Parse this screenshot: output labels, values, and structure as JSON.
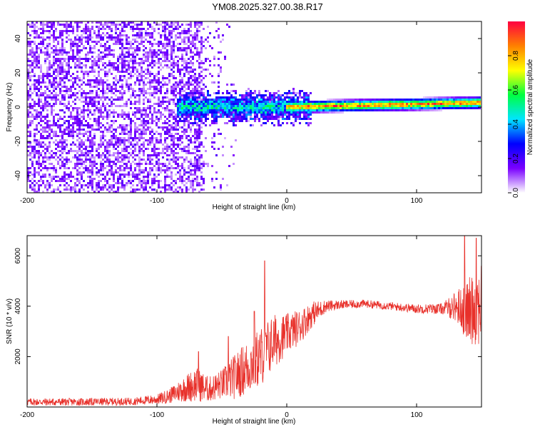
{
  "title": "YM08.2025.327.00.38.R17",
  "chart_data": [
    {
      "type": "heatmap",
      "xlabel": "Height of straight line (km)",
      "ylabel": "Frequency (Hz)",
      "xlim": [
        -200,
        150
      ],
      "ylim": [
        -50,
        50
      ],
      "x_ticks": [
        -200,
        -100,
        0,
        100
      ],
      "x_tick_labels": [
        "-200",
        "-100",
        "0",
        "100"
      ],
      "y_ticks": [
        -40,
        -20,
        0,
        20,
        40
      ],
      "y_tick_labels": [
        "-40",
        "-20",
        "0",
        "20",
        "40"
      ],
      "colorbar": {
        "label": "Normalized spectral amplitude",
        "range": [
          0,
          1
        ],
        "ticks": [
          0,
          0.2,
          0.4,
          0.6,
          0.8
        ],
        "tick_labels": [
          "0.0",
          "0.2",
          "0.4",
          "0.6",
          "0.8"
        ],
        "colors": [
          "#ffffff",
          "#7a00ff",
          "#0000ff",
          "#00e5ff",
          "#00ff40",
          "#ffff00",
          "#ff8000",
          "#ff0040"
        ]
      },
      "regions": [
        {
          "x": [
            -200,
            -65
          ],
          "freq": [
            -50,
            50
          ],
          "level": 0.15,
          "pattern": "noise"
        },
        {
          "x": [
            -85,
            20
          ],
          "freq": [
            -12,
            12
          ],
          "level": 0.35,
          "pattern": "broadened-line"
        },
        {
          "x": [
            0,
            150
          ],
          "freq_center_start": 0,
          "freq_center_end": 2.5,
          "half_width": 2,
          "level": 0.75,
          "pattern": "narrow-line"
        }
      ]
    },
    {
      "type": "line",
      "xlabel": "Height of straight line (km)",
      "ylabel": "SNR (10 * v/v)",
      "xlim": [
        -200,
        150
      ],
      "ylim": [
        0,
        6800
      ],
      "x_ticks": [
        -200,
        -100,
        0,
        100
      ],
      "x_tick_labels": [
        "-200",
        "-100",
        "0",
        "100"
      ],
      "y_ticks": [
        2000,
        4000,
        6000
      ],
      "y_tick_labels": [
        "2000",
        "4000",
        "6000"
      ],
      "series": [
        {
          "color": "#e8302a",
          "x": [
            -200,
            -160,
            -120,
            -100,
            -90,
            -80,
            -70,
            -60,
            -50,
            -40,
            -30,
            -20,
            -10,
            0,
            10,
            20,
            30,
            40,
            60,
            80,
            100,
            120,
            130,
            140,
            150
          ],
          "y": [
            200,
            200,
            220,
            300,
            450,
            700,
            900,
            700,
            900,
            1200,
            1600,
            2000,
            2600,
            2900,
            3200,
            3700,
            4000,
            4050,
            4100,
            4000,
            3900,
            3900,
            4000,
            3800,
            4200
          ],
          "spread": [
            150,
            150,
            150,
            200,
            300,
            500,
            700,
            500,
            600,
            900,
            1100,
            1200,
            1100,
            800,
            700,
            500,
            250,
            180,
            160,
            160,
            180,
            220,
            600,
            1300,
            1800
          ],
          "peaks": [
            {
              "x": -68,
              "y": 2200
            },
            {
              "x": -45,
              "y": 2800
            },
            {
              "x": -25,
              "y": 3800
            },
            {
              "x": -17,
              "y": 5800
            },
            {
              "x": 137,
              "y": 6800
            },
            {
              "x": 146,
              "y": 6700
            }
          ]
        }
      ]
    }
  ]
}
